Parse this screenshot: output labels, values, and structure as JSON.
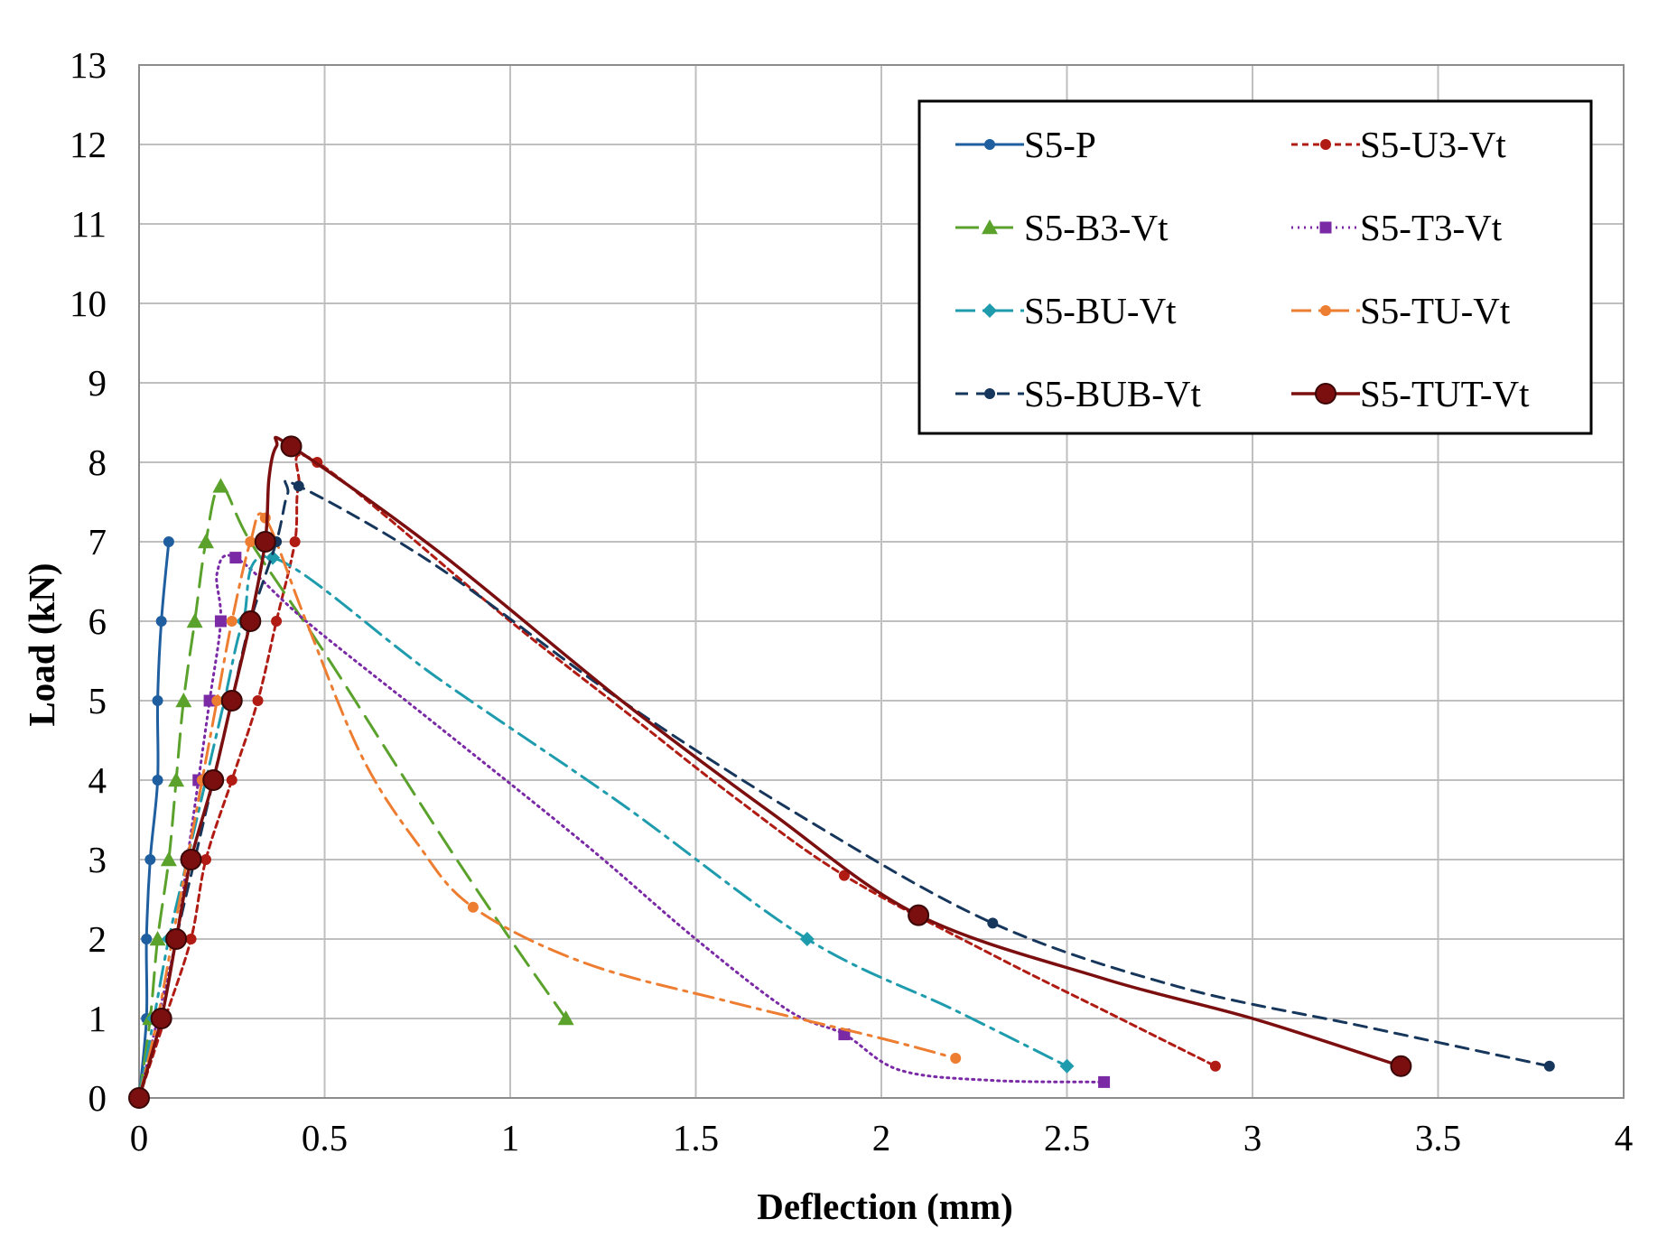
{
  "chart_data": {
    "type": "line",
    "title": "",
    "xlabel": "Deflection (mm)",
    "ylabel": "Load (kN)",
    "xlim": [
      0,
      4
    ],
    "ylim": [
      0,
      13
    ],
    "grid": true,
    "legend_position": "top-right",
    "x_ticks": [
      "0",
      "0.5",
      "1",
      "1.5",
      "2",
      "2.5",
      "3",
      "3.5",
      "4"
    ],
    "y_ticks": [
      "0",
      "1",
      "2",
      "3",
      "4",
      "5",
      "6",
      "7",
      "8",
      "9",
      "10",
      "11",
      "12",
      "13"
    ],
    "series": [
      {
        "name": "S5-P",
        "color": "#1f5fa0",
        "dash": "solid",
        "marker": "circle",
        "marker_size": "small",
        "points": [
          [
            0,
            0
          ],
          [
            0.02,
            1
          ],
          [
            0.02,
            2
          ],
          [
            0.03,
            3
          ],
          [
            0.05,
            4
          ],
          [
            0.05,
            5
          ],
          [
            0.06,
            6
          ],
          [
            0.08,
            7
          ]
        ],
        "curve": [
          [
            0,
            0
          ],
          [
            0.02,
            1
          ],
          [
            0.02,
            2
          ],
          [
            0.03,
            3
          ],
          [
            0.05,
            4
          ],
          [
            0.05,
            5
          ],
          [
            0.06,
            6
          ],
          [
            0.08,
            7
          ]
        ]
      },
      {
        "name": "S5-U3-Vt",
        "color": "#b01c14",
        "dash": "short",
        "marker": "circle",
        "marker_size": "small",
        "points": [
          [
            0,
            0
          ],
          [
            0.07,
            1
          ],
          [
            0.14,
            2
          ],
          [
            0.18,
            3
          ],
          [
            0.25,
            4
          ],
          [
            0.32,
            5
          ],
          [
            0.37,
            6
          ],
          [
            0.42,
            7
          ],
          [
            0.48,
            8
          ],
          [
            1.9,
            2.8
          ],
          [
            2.9,
            0.4
          ]
        ],
        "curve": [
          [
            0,
            0
          ],
          [
            0.07,
            1
          ],
          [
            0.14,
            2
          ],
          [
            0.18,
            3
          ],
          [
            0.25,
            4
          ],
          [
            0.32,
            5
          ],
          [
            0.37,
            6
          ],
          [
            0.42,
            7
          ],
          [
            0.43,
            7.7
          ],
          [
            0.48,
            8
          ],
          [
            1.0,
            6.0
          ],
          [
            1.3,
            4.9
          ],
          [
            1.6,
            3.8
          ],
          [
            1.9,
            2.8
          ],
          [
            2.3,
            1.8
          ],
          [
            2.6,
            1.1
          ],
          [
            2.9,
            0.4
          ]
        ]
      },
      {
        "name": "S5-B3-Vt",
        "color": "#5aa22c",
        "dash": "long",
        "marker": "triangle",
        "marker_size": "small",
        "points": [
          [
            0,
            0
          ],
          [
            0.03,
            1
          ],
          [
            0.05,
            2
          ],
          [
            0.08,
            3
          ],
          [
            0.1,
            4
          ],
          [
            0.12,
            5
          ],
          [
            0.15,
            6
          ],
          [
            0.18,
            7
          ],
          [
            0.22,
            7.7
          ],
          [
            1.15,
            1
          ]
        ],
        "curve": [
          [
            0,
            0
          ],
          [
            0.03,
            1
          ],
          [
            0.05,
            2
          ],
          [
            0.08,
            3
          ],
          [
            0.1,
            4
          ],
          [
            0.12,
            5
          ],
          [
            0.15,
            6
          ],
          [
            0.18,
            7
          ],
          [
            0.22,
            7.7
          ],
          [
            0.3,
            7.0
          ],
          [
            0.5,
            5.6
          ],
          [
            0.8,
            3.4
          ],
          [
            1.0,
            2.0
          ],
          [
            1.15,
            1
          ]
        ]
      },
      {
        "name": "S5-T3-Vt",
        "color": "#7b2aa6",
        "dash": "dot",
        "marker": "square",
        "marker_size": "small",
        "points": [
          [
            0,
            0
          ],
          [
            0.05,
            1
          ],
          [
            0.1,
            2
          ],
          [
            0.13,
            3
          ],
          [
            0.16,
            4
          ],
          [
            0.19,
            5
          ],
          [
            0.22,
            6
          ],
          [
            0.26,
            6.8
          ],
          [
            1.9,
            0.8
          ],
          [
            2.6,
            0.2
          ]
        ],
        "curve": [
          [
            0,
            0
          ],
          [
            0.05,
            1
          ],
          [
            0.1,
            2
          ],
          [
            0.13,
            3
          ],
          [
            0.16,
            4
          ],
          [
            0.19,
            5
          ],
          [
            0.22,
            6
          ],
          [
            0.21,
            6.6
          ],
          [
            0.26,
            6.8
          ],
          [
            0.45,
            6.0
          ],
          [
            0.8,
            4.7
          ],
          [
            1.2,
            3.2
          ],
          [
            1.5,
            2.0
          ],
          [
            1.75,
            1.1
          ],
          [
            1.9,
            0.8
          ],
          [
            2.05,
            0.35
          ],
          [
            2.3,
            0.22
          ],
          [
            2.6,
            0.2
          ]
        ]
      },
      {
        "name": "S5-BU-Vt",
        "color": "#1e9cad",
        "dash": "dashdot",
        "marker": "diamond",
        "marker_size": "small",
        "points": [
          [
            0,
            0
          ],
          [
            0.04,
            1
          ],
          [
            0.08,
            2
          ],
          [
            0.13,
            3
          ],
          [
            0.18,
            4
          ],
          [
            0.23,
            5
          ],
          [
            0.28,
            6
          ],
          [
            0.36,
            6.8
          ],
          [
            1.8,
            2
          ],
          [
            2.5,
            0.4
          ]
        ],
        "curve": [
          [
            0,
            0
          ],
          [
            0.04,
            1
          ],
          [
            0.08,
            2
          ],
          [
            0.13,
            3
          ],
          [
            0.18,
            4
          ],
          [
            0.23,
            5
          ],
          [
            0.28,
            6
          ],
          [
            0.36,
            6.8
          ],
          [
            0.8,
            5.3
          ],
          [
            1.3,
            3.7
          ],
          [
            1.8,
            2
          ],
          [
            2.2,
            1.1
          ],
          [
            2.5,
            0.4
          ]
        ]
      },
      {
        "name": "S5-TU-Vt",
        "color": "#ed7d31",
        "dash": "dashdot",
        "marker": "circle",
        "marker_size": "small",
        "points": [
          [
            0,
            0
          ],
          [
            0.05,
            1
          ],
          [
            0.09,
            2
          ],
          [
            0.13,
            3
          ],
          [
            0.17,
            4
          ],
          [
            0.21,
            5
          ],
          [
            0.25,
            6
          ],
          [
            0.3,
            7
          ],
          [
            0.34,
            7.3
          ],
          [
            0.9,
            2.4
          ],
          [
            2.2,
            0.5
          ]
        ],
        "curve": [
          [
            0,
            0
          ],
          [
            0.05,
            1
          ],
          [
            0.09,
            2
          ],
          [
            0.13,
            3
          ],
          [
            0.17,
            4
          ],
          [
            0.21,
            5
          ],
          [
            0.25,
            6
          ],
          [
            0.3,
            7
          ],
          [
            0.34,
            7.3
          ],
          [
            0.45,
            6.0
          ],
          [
            0.6,
            4.3
          ],
          [
            0.75,
            3.2
          ],
          [
            0.9,
            2.4
          ],
          [
            1.2,
            1.7
          ],
          [
            1.6,
            1.2
          ],
          [
            2.0,
            0.75
          ],
          [
            2.2,
            0.5
          ]
        ]
      },
      {
        "name": "S5-BUB-Vt",
        "color": "#16365c",
        "dash": "dash",
        "marker": "circle",
        "marker_size": "small",
        "points": [
          [
            0,
            0
          ],
          [
            0.06,
            1
          ],
          [
            0.1,
            2
          ],
          [
            0.15,
            3
          ],
          [
            0.2,
            4
          ],
          [
            0.25,
            5
          ],
          [
            0.3,
            6
          ],
          [
            0.37,
            7
          ],
          [
            0.43,
            7.7
          ],
          [
            2.3,
            2.2
          ],
          [
            3.8,
            0.4
          ]
        ],
        "curve": [
          [
            0,
            0
          ],
          [
            0.06,
            1
          ],
          [
            0.1,
            2
          ],
          [
            0.15,
            3
          ],
          [
            0.2,
            4
          ],
          [
            0.25,
            5
          ],
          [
            0.3,
            6
          ],
          [
            0.37,
            7
          ],
          [
            0.4,
            7.6
          ],
          [
            0.43,
            7.7
          ],
          [
            0.8,
            6.7
          ],
          [
            1.3,
            5.0
          ],
          [
            1.8,
            3.5
          ],
          [
            2.3,
            2.2
          ],
          [
            2.8,
            1.4
          ],
          [
            3.3,
            0.9
          ],
          [
            3.8,
            0.4
          ]
        ]
      },
      {
        "name": "S5-TUT-Vt",
        "color": "#7b0f0f",
        "dash": "solid",
        "marker": "circle",
        "marker_size": "large",
        "points": [
          [
            0,
            0
          ],
          [
            0.06,
            1
          ],
          [
            0.1,
            2
          ],
          [
            0.14,
            3
          ],
          [
            0.2,
            4
          ],
          [
            0.25,
            5
          ],
          [
            0.3,
            6
          ],
          [
            0.34,
            7
          ],
          [
            0.41,
            8.2
          ],
          [
            2.1,
            2.3
          ],
          [
            3.4,
            0.4
          ]
        ],
        "curve": [
          [
            0,
            0
          ],
          [
            0.06,
            1
          ],
          [
            0.1,
            2
          ],
          [
            0.14,
            3
          ],
          [
            0.2,
            4
          ],
          [
            0.25,
            5
          ],
          [
            0.3,
            6
          ],
          [
            0.34,
            7
          ],
          [
            0.35,
            7.8
          ],
          [
            0.37,
            8.2
          ],
          [
            0.41,
            8.2
          ],
          [
            0.8,
            6.9
          ],
          [
            1.3,
            5.0
          ],
          [
            1.7,
            3.6
          ],
          [
            2.1,
            2.3
          ],
          [
            2.6,
            1.5
          ],
          [
            3.0,
            1.0
          ],
          [
            3.4,
            0.4
          ]
        ]
      }
    ]
  }
}
